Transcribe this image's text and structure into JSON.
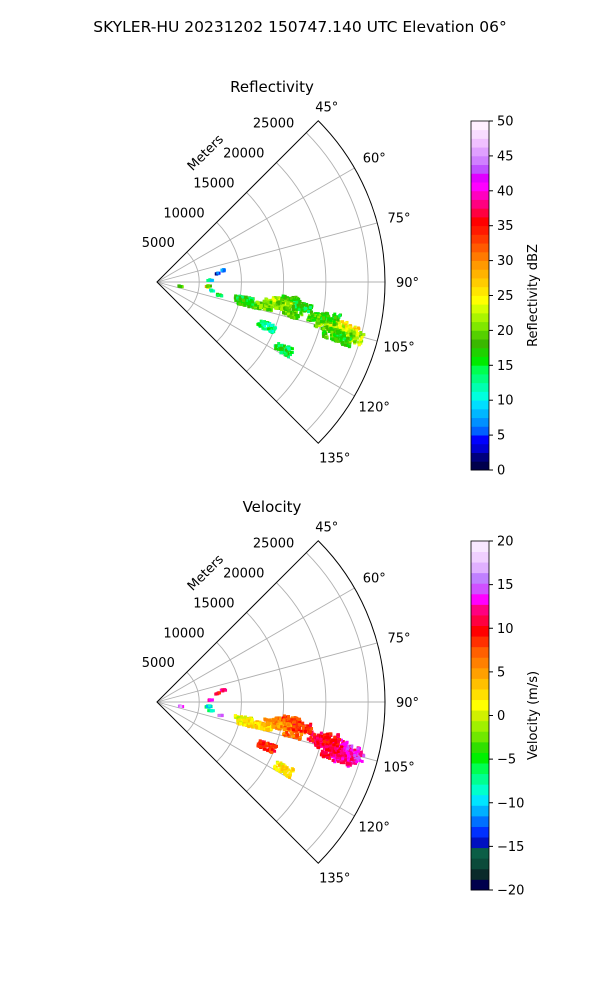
{
  "figure": {
    "title": "SKYLER-HU  20231202  150747.140 UTC Elevation 06°"
  },
  "chart_data": [
    {
      "type": "polar-sector",
      "title": "Reflectivity",
      "radial_label": "Meters",
      "theta_range_deg": [
        45,
        135
      ],
      "theta_ticks": [
        "45°",
        "60°",
        "75°",
        "90°",
        "105°",
        "120°",
        "135°"
      ],
      "theta_tick_values": [
        45,
        60,
        75,
        90,
        105,
        120,
        135
      ],
      "r_ticks": [
        "5000",
        "10000",
        "15000",
        "20000",
        "25000"
      ],
      "r_tick_values": [
        5000,
        10000,
        15000,
        20000,
        25000
      ],
      "r_max": 27000,
      "grid": true,
      "colorbar": {
        "label": "Reflectivity dBZ",
        "range": [
          0,
          50
        ],
        "ticks": [
          "0",
          "5",
          "10",
          "15",
          "20",
          "25",
          "30",
          "35",
          "40",
          "45",
          "50"
        ],
        "colors": [
          "#00004c",
          "#00007d",
          "#0000d2",
          "#0000ff",
          "#0060ff",
          "#0090ff",
          "#00b7ff",
          "#00deff",
          "#00ffde",
          "#00ffb0",
          "#00ff80",
          "#00ff50",
          "#00ea00",
          "#1fd200",
          "#3ab800",
          "#55d000",
          "#80e800",
          "#aaf500",
          "#d4ff00",
          "#ffff00",
          "#ffe600",
          "#ffcc00",
          "#ffb300",
          "#ff9900",
          "#ff7a00",
          "#ff5a00",
          "#ff3a00",
          "#ff1a00",
          "#ff0000",
          "#ff0040",
          "#ff0080",
          "#ff00bf",
          "#ff00ff",
          "#e000ff",
          "#c050ff",
          "#d080ff",
          "#e0a0ff",
          "#f0c0ff",
          "#f8dcff",
          "#fff0ff"
        ]
      },
      "cells": [
        {
          "theta": 101.4,
          "r": 10500,
          "value": 16
        },
        {
          "theta": 103.3,
          "r": 11000,
          "value": 17
        },
        {
          "theta": 102.8,
          "r": 13000,
          "value": 19
        },
        {
          "theta": 100.5,
          "r": 14000,
          "value": 20
        },
        {
          "theta": 99.0,
          "r": 15000,
          "value": 22
        },
        {
          "theta": 98.0,
          "r": 16000,
          "value": 18
        },
        {
          "theta": 101.0,
          "r": 15500,
          "value": 21
        },
        {
          "theta": 103.0,
          "r": 16500,
          "value": 19
        },
        {
          "theta": 100.0,
          "r": 17500,
          "value": 16
        },
        {
          "theta": 102.5,
          "r": 19500,
          "value": 18
        },
        {
          "theta": 104.0,
          "r": 20500,
          "value": 21
        },
        {
          "theta": 103.5,
          "r": 22000,
          "value": 24
        },
        {
          "theta": 104.5,
          "r": 23500,
          "value": 26
        },
        {
          "theta": 105.3,
          "r": 22500,
          "value": 23
        },
        {
          "theta": 102.0,
          "r": 21000,
          "value": 17
        },
        {
          "theta": 105.5,
          "r": 24200,
          "value": 22
        },
        {
          "theta": 106.5,
          "r": 21500,
          "value": 18
        },
        {
          "theta": 106.8,
          "r": 23000,
          "value": 17
        },
        {
          "theta": 95.5,
          "r": 6000,
          "value": 26
        },
        {
          "theta": 94.5,
          "r": 6200,
          "value": 20
        },
        {
          "theta": 80.0,
          "r": 8000,
          "value": 7
        },
        {
          "theta": 82.0,
          "r": 7200,
          "value": 5
        },
        {
          "theta": 88.0,
          "r": 6300,
          "value": 10
        },
        {
          "theta": 99.0,
          "r": 6500,
          "value": 12
        },
        {
          "theta": 102.0,
          "r": 7600,
          "value": 14
        },
        {
          "theta": 112.0,
          "r": 14000,
          "value": 13
        },
        {
          "theta": 118.0,
          "r": 17000,
          "value": 15
        },
        {
          "theta": 100.5,
          "r": 2800,
          "value": 18
        }
      ]
    },
    {
      "type": "polar-sector",
      "title": "Velocity",
      "radial_label": "Meters",
      "theta_range_deg": [
        45,
        135
      ],
      "theta_ticks": [
        "45°",
        "60°",
        "75°",
        "90°",
        "105°",
        "120°",
        "135°"
      ],
      "theta_tick_values": [
        45,
        60,
        75,
        90,
        105,
        120,
        135
      ],
      "r_ticks": [
        "5000",
        "10000",
        "15000",
        "20000",
        "25000"
      ],
      "r_tick_values": [
        5000,
        10000,
        15000,
        20000,
        25000
      ],
      "r_max": 27000,
      "grid": true,
      "colorbar": {
        "label": "Velocity (m/s)",
        "range": [
          -20,
          20
        ],
        "ticks": [
          "−20",
          "−15",
          "−10",
          "−5",
          "0",
          "5",
          "10",
          "15",
          "20"
        ],
        "colors": [
          "#00004c",
          "#0a2a2a",
          "#0b4a3a",
          "#0b5e46",
          "#0010c0",
          "#0030ff",
          "#0070ff",
          "#00b0ff",
          "#00e5ff",
          "#00ffcc",
          "#00ff90",
          "#00ff50",
          "#00f000",
          "#30e000",
          "#70e800",
          "#a0f000",
          "#d0f000",
          "#ffff00",
          "#ffe000",
          "#ffc000",
          "#ffa000",
          "#ff8000",
          "#ff6000",
          "#ff3000",
          "#ff0000",
          "#ff0040",
          "#ff0080",
          "#ff00ff",
          "#d050ff",
          "#c080ff",
          "#e0b0ff",
          "#f0d0ff",
          "#f8e8ff"
        ]
      },
      "cells": [
        {
          "theta": 101.4,
          "r": 10500,
          "value": 1
        },
        {
          "theta": 103.3,
          "r": 11000,
          "value": 2
        },
        {
          "theta": 102.8,
          "r": 13000,
          "value": 3
        },
        {
          "theta": 100.5,
          "r": 14000,
          "value": 5
        },
        {
          "theta": 99.0,
          "r": 15000,
          "value": 6
        },
        {
          "theta": 98.0,
          "r": 16000,
          "value": 8
        },
        {
          "theta": 101.0,
          "r": 15500,
          "value": 5
        },
        {
          "theta": 103.0,
          "r": 16500,
          "value": 7
        },
        {
          "theta": 100.0,
          "r": 17500,
          "value": 9
        },
        {
          "theta": 102.5,
          "r": 19500,
          "value": 10
        },
        {
          "theta": 104.0,
          "r": 20500,
          "value": 11
        },
        {
          "theta": 103.5,
          "r": 22000,
          "value": 12
        },
        {
          "theta": 104.5,
          "r": 23500,
          "value": 13
        },
        {
          "theta": 105.3,
          "r": 22500,
          "value": 12
        },
        {
          "theta": 102.0,
          "r": 21000,
          "value": 10
        },
        {
          "theta": 105.5,
          "r": 24200,
          "value": 13
        },
        {
          "theta": 106.5,
          "r": 21500,
          "value": 11
        },
        {
          "theta": 106.8,
          "r": 23000,
          "value": 12
        },
        {
          "theta": 95.5,
          "r": 6000,
          "value": -8
        },
        {
          "theta": 94.5,
          "r": 6200,
          "value": -9
        },
        {
          "theta": 80.0,
          "r": 8000,
          "value": 12
        },
        {
          "theta": 82.0,
          "r": 7200,
          "value": 10
        },
        {
          "theta": 88.0,
          "r": 6300,
          "value": 13
        },
        {
          "theta": 99.0,
          "r": 6500,
          "value": -7
        },
        {
          "theta": 102.0,
          "r": 7600,
          "value": 14
        },
        {
          "theta": 112.0,
          "r": 14000,
          "value": 9
        },
        {
          "theta": 118.0,
          "r": 17000,
          "value": 2
        },
        {
          "theta": 100.5,
          "r": 2800,
          "value": 15
        }
      ]
    }
  ]
}
